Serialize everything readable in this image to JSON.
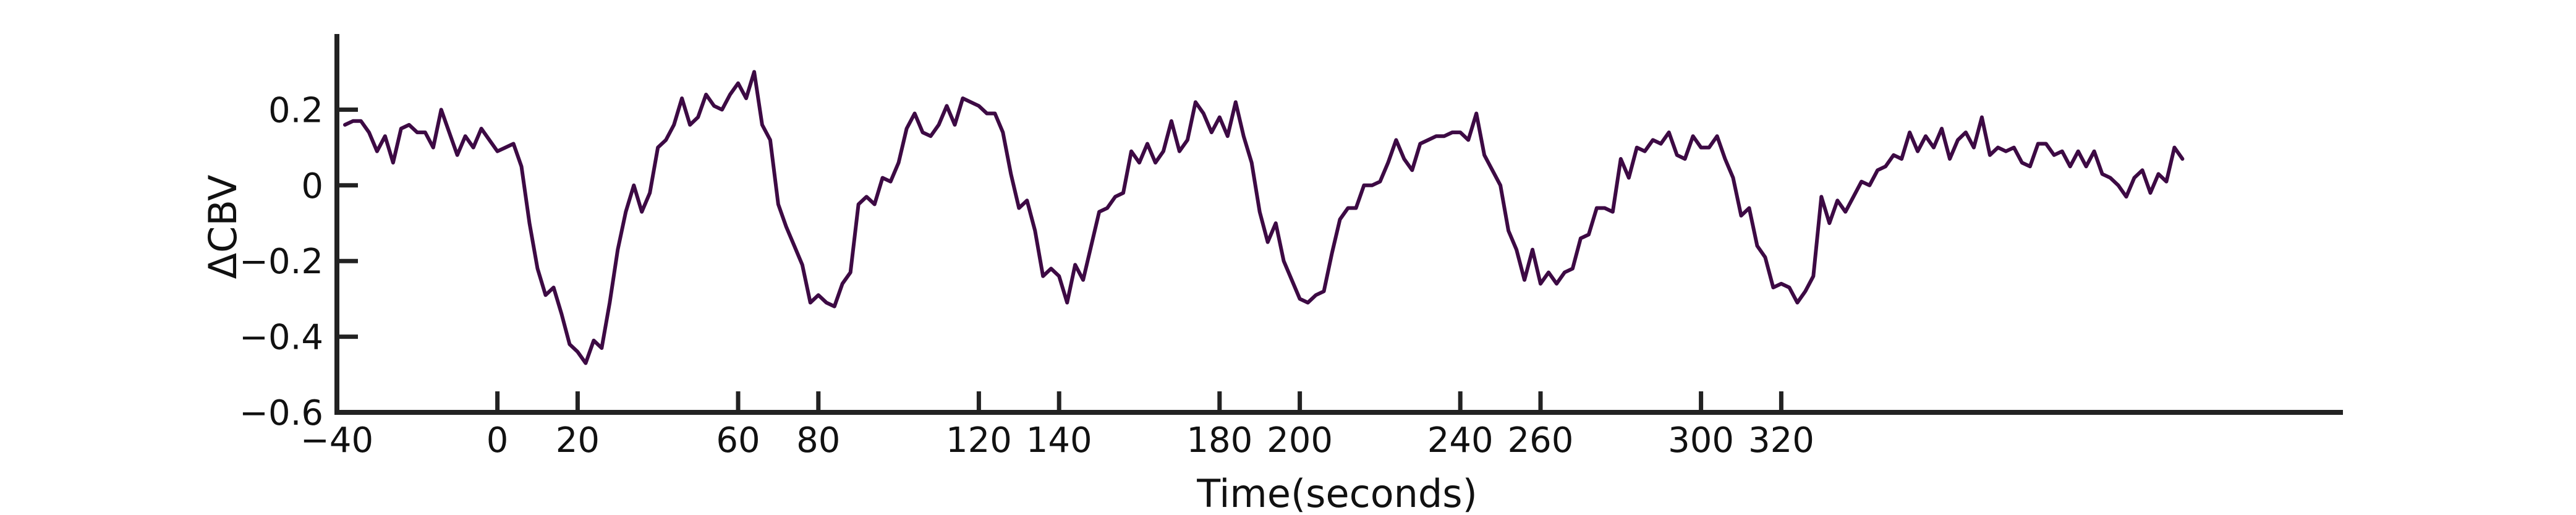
{
  "chart_data": {
    "type": "line",
    "title": "",
    "xlabel": "Time(seconds)",
    "ylabel": "ΔCBV",
    "xlim": [
      -40,
      460
    ],
    "ylim": [
      -0.6,
      0.4
    ],
    "grid": false,
    "legend": "none",
    "line_color": "#3d0a44",
    "axis_color": "#222222",
    "x_ticks": [
      -40,
      0,
      20,
      60,
      80,
      120,
      140,
      180,
      200,
      240,
      260,
      300,
      320
    ],
    "x_tick_labels": [
      "−40",
      "0",
      "20",
      "60",
      "80",
      "120",
      "140",
      "180",
      "200",
      "240",
      "260",
      "300",
      "320"
    ],
    "y_ticks": [
      0.2,
      0,
      -0.2,
      -0.4,
      -0.6
    ],
    "y_tick_labels": [
      "0.2",
      "0",
      "−0.2",
      "−0.4",
      "−0.6"
    ],
    "series": [
      {
        "x": [
          -38,
          -36,
          -34,
          -32,
          -30,
          -28,
          -26,
          -24,
          -22,
          -20,
          -18,
          -16,
          -14,
          -12,
          -10,
          -8,
          -6,
          -4,
          -2,
          0,
          2,
          4,
          6,
          8,
          10,
          12,
          14,
          16,
          18,
          20,
          22,
          24,
          26,
          28,
          30,
          32,
          34,
          36,
          38,
          40,
          42,
          44,
          46,
          48,
          50,
          52,
          54,
          56,
          58,
          60,
          62,
          64,
          66,
          68,
          70,
          72,
          74,
          76,
          78,
          80,
          82,
          84,
          86,
          88,
          90,
          92,
          94,
          96,
          98,
          100,
          102,
          104,
          106,
          108,
          110,
          112,
          114,
          116,
          118,
          120,
          122,
          124,
          126,
          128,
          130,
          132,
          134,
          136,
          138,
          140,
          142,
          144,
          146,
          148,
          150,
          152,
          154,
          156,
          158,
          160,
          162,
          164,
          166,
          168,
          170,
          172,
          174,
          176,
          178,
          180,
          182,
          184,
          186,
          188,
          190,
          192,
          194,
          196,
          198,
          200,
          202,
          204,
          206,
          208,
          210,
          212,
          214,
          216,
          218,
          220,
          222,
          224,
          226,
          228,
          230,
          232,
          234,
          236,
          238,
          240,
          242,
          244,
          246,
          248,
          250,
          252,
          254,
          256,
          258,
          260,
          262,
          264,
          266,
          268,
          270,
          272,
          274,
          276,
          278,
          280,
          282,
          284,
          286,
          288,
          290,
          292,
          294,
          296,
          298,
          300,
          302,
          304,
          306,
          308,
          310,
          312,
          314,
          316,
          318,
          320,
          322,
          324,
          326,
          328,
          330,
          332,
          334,
          336,
          338,
          340,
          342,
          344,
          346,
          348,
          350,
          352,
          354,
          356,
          358,
          360,
          362,
          364,
          366,
          368,
          370,
          372,
          374,
          376,
          378,
          380,
          382,
          384,
          386,
          388,
          390,
          392,
          394,
          396,
          398,
          400,
          402,
          404,
          406,
          408,
          410,
          412,
          414,
          416,
          418,
          420
        ],
        "y": [
          0.16,
          0.17,
          0.17,
          0.14,
          0.09,
          0.13,
          0.06,
          0.15,
          0.16,
          0.14,
          0.14,
          0.1,
          0.2,
          0.14,
          0.08,
          0.13,
          0.1,
          0.15,
          0.12,
          0.09,
          0.1,
          0.11,
          0.05,
          -0.1,
          -0.22,
          -0.29,
          -0.27,
          -0.34,
          -0.42,
          -0.44,
          -0.47,
          -0.41,
          -0.43,
          -0.31,
          -0.17,
          -0.07,
          0.0,
          -0.07,
          -0.02,
          0.1,
          0.12,
          0.16,
          0.23,
          0.16,
          0.18,
          0.24,
          0.21,
          0.2,
          0.24,
          0.27,
          0.23,
          0.3,
          0.16,
          0.12,
          -0.05,
          -0.11,
          -0.16,
          -0.21,
          -0.31,
          -0.29,
          -0.31,
          -0.32,
          -0.26,
          -0.23,
          -0.05,
          -0.03,
          -0.05,
          0.02,
          0.01,
          0.06,
          0.15,
          0.19,
          0.14,
          0.13,
          0.16,
          0.21,
          0.16,
          0.23,
          0.22,
          0.21,
          0.19,
          0.19,
          0.14,
          0.03,
          -0.06,
          -0.04,
          -0.12,
          -0.24,
          -0.22,
          -0.24,
          -0.31,
          -0.21,
          -0.25,
          -0.16,
          -0.07,
          -0.06,
          -0.03,
          -0.02,
          0.09,
          0.06,
          0.11,
          0.06,
          0.09,
          0.17,
          0.09,
          0.12,
          0.22,
          0.19,
          0.14,
          0.18,
          0.13,
          0.22,
          0.13,
          0.06,
          -0.07,
          -0.15,
          -0.1,
          -0.2,
          -0.25,
          -0.3,
          -0.31,
          -0.29,
          -0.28,
          -0.18,
          -0.09,
          -0.06,
          -0.06,
          0.0,
          0.0,
          0.01,
          0.06,
          0.12,
          0.07,
          0.04,
          0.11,
          0.12,
          0.13,
          0.13,
          0.14,
          0.14,
          0.12,
          0.19,
          0.08,
          0.04,
          0.0,
          -0.12,
          -0.17,
          -0.25,
          -0.17,
          -0.26,
          -0.23,
          -0.26,
          -0.23,
          -0.22,
          -0.14,
          -0.13,
          -0.06,
          -0.06,
          -0.07,
          0.07,
          0.02,
          0.1,
          0.09,
          0.12,
          0.11,
          0.14,
          0.08,
          0.07,
          0.13,
          0.1,
          0.1,
          0.13,
          0.07,
          0.02,
          -0.08,
          -0.06,
          -0.16,
          -0.19,
          -0.27,
          -0.26,
          -0.27,
          -0.31,
          -0.28,
          -0.24,
          -0.03,
          -0.1,
          -0.04,
          -0.07,
          -0.03,
          0.01,
          0.0,
          0.04,
          0.05,
          0.08,
          0.07,
          0.14,
          0.09,
          0.13,
          0.1,
          0.15,
          0.07,
          0.12,
          0.14,
          0.1,
          0.18,
          0.08,
          0.1,
          0.09,
          0.1,
          0.06,
          0.05,
          0.11,
          0.11,
          0.08,
          0.09,
          0.05,
          0.09,
          0.05,
          0.09,
          0.03,
          0.02,
          0.0,
          -0.03,
          0.02,
          0.04,
          -0.02,
          0.03,
          0.01,
          0.1,
          0.07
        ]
      }
    ]
  }
}
